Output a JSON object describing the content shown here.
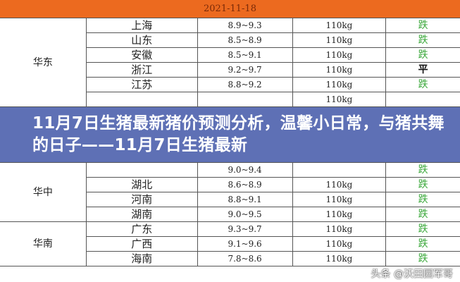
{
  "date": "2021-11-18",
  "regions": [
    {
      "name": "华东",
      "rows": [
        {
          "province": "上海",
          "price": "8.9~9.3",
          "weight": "110kg",
          "trend": "跌"
        },
        {
          "province": "山东",
          "price": "8.5~8.9",
          "weight": "110kg",
          "trend": "跌"
        },
        {
          "province": "安徽",
          "price": "8.5~9.1",
          "weight": "110kg",
          "trend": "跌"
        },
        {
          "province": "浙江",
          "price": "9.2~9.7",
          "weight": "110kg",
          "trend": "平"
        },
        {
          "province": "江苏",
          "price": "8.8~9.2",
          "weight": "110kg",
          "trend": "跌"
        },
        {
          "province": "",
          "price": "",
          "weight": "110kg",
          "trend": ""
        }
      ]
    },
    {
      "name": "华中",
      "rows": [
        {
          "province": "",
          "price": "9.0~9.4",
          "weight": "",
          "trend": "跌"
        },
        {
          "province": "湖北",
          "price": "8.6~8.9",
          "weight": "110kg",
          "trend": "跌"
        },
        {
          "province": "河南",
          "price": "8.8~9.1",
          "weight": "110kg",
          "trend": "跌"
        },
        {
          "province": "湖南",
          "price": "9.0~9.5",
          "weight": "110kg",
          "trend": "跌"
        }
      ]
    },
    {
      "name": "华南",
      "rows": [
        {
          "province": "广东",
          "price": "9.3~9.7",
          "weight": "110kg",
          "trend": "跌"
        },
        {
          "province": "广西",
          "price": "9.1~9.6",
          "weight": "110kg",
          "trend": "跌"
        },
        {
          "province": "海南",
          "price": "7.8~8.6",
          "weight": "110kg",
          "trend": "跌"
        }
      ]
    }
  ],
  "banner_title": "11月7日生猪最新猪价预测分析，温馨小日常，与猪共舞的日子——11月7日生猪最新",
  "watermark": "头条 @沃田园军哥",
  "colors": {
    "header": "#ec6a1f",
    "down": "#3aa83a",
    "banner": "#5064af"
  }
}
